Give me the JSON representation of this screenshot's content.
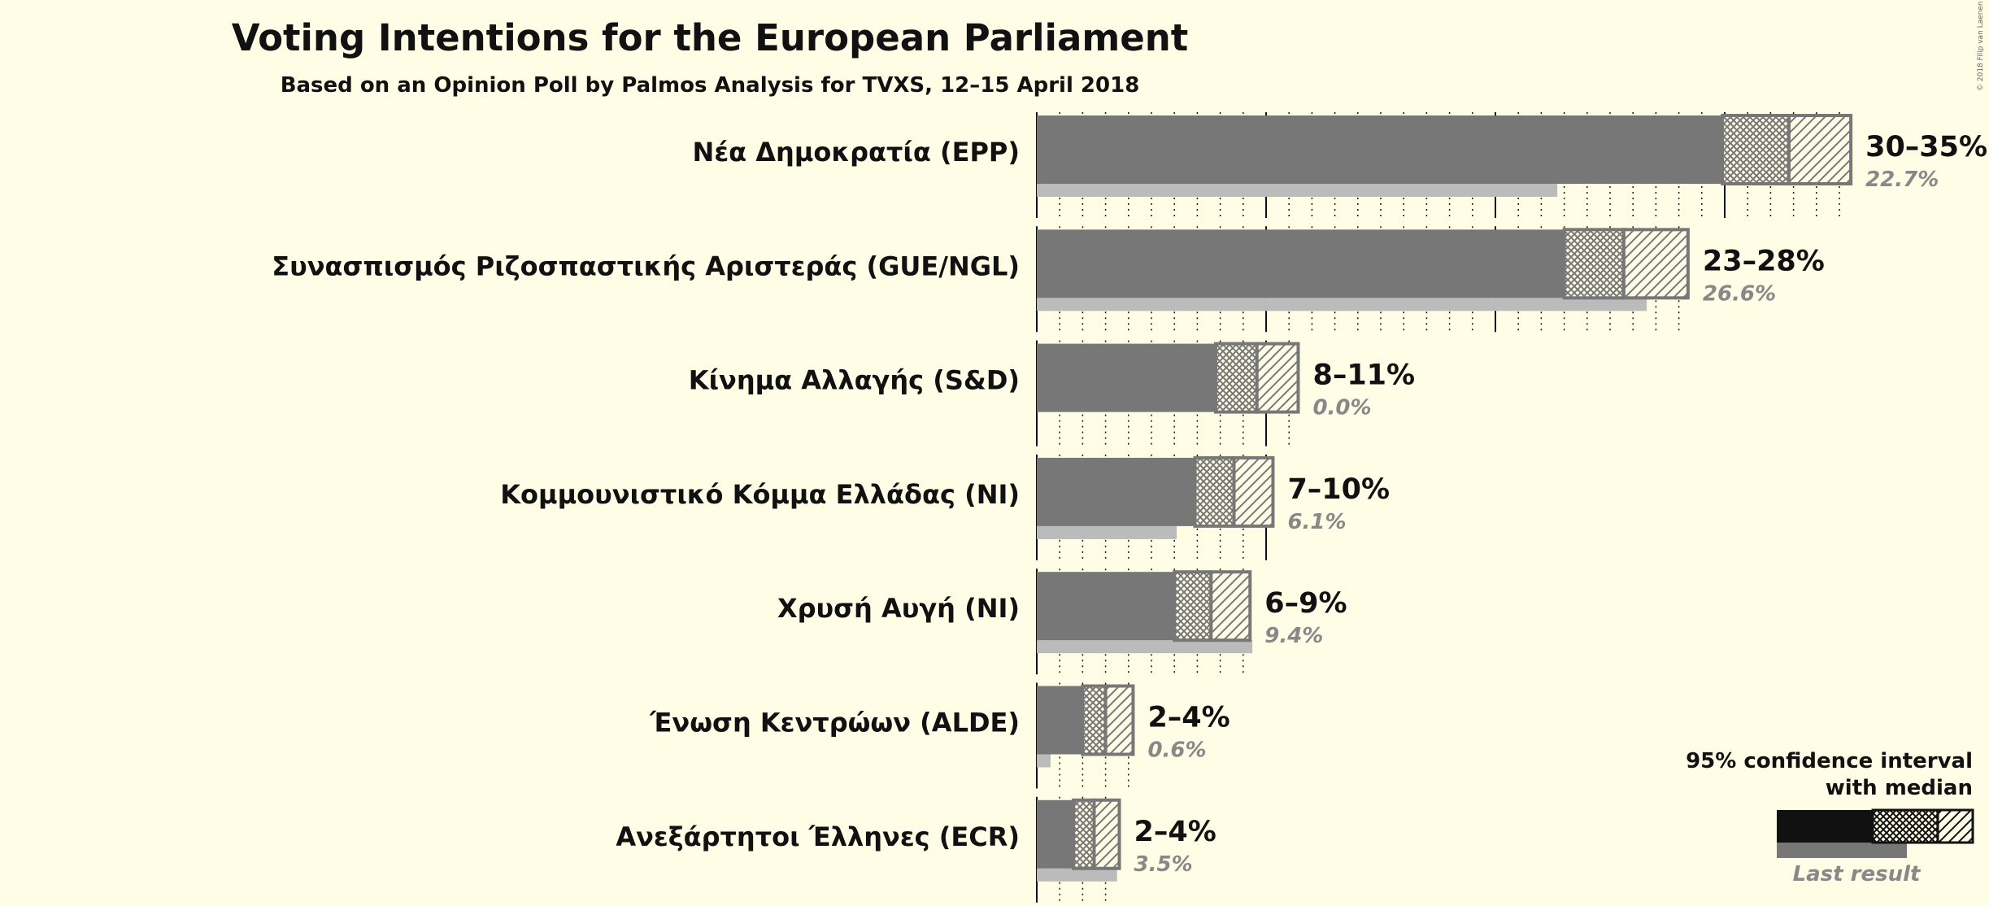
{
  "chart_data": {
    "type": "bar",
    "title": "Voting Intentions for the European Parliament",
    "subtitle": "Based on an Opinion Poll by Palmos Analysis for TVXS, 12–15 April 2018",
    "copyright": "© 2018 Filip van Laenen",
    "x_range": [
      0,
      36
    ],
    "gridlines": {
      "major_every": 10,
      "minor_every": 1
    },
    "categories": [
      "Νέα Δημοκρατία (EPP)",
      "Συνασπισμός Ριζοσπαστικής Αριστεράς (GUE/NGL)",
      "Κίνημα Αλλαγής (S&D)",
      "Κομμουνιστικό Κόμμα Ελλάδας (NI)",
      "Χρυσή Αυγή (NI)",
      "Ένωση Κεντρώων (ALDE)",
      "Ανεξάρτητοι Έλληνες (ECR)"
    ],
    "series": [
      {
        "name": "95% confidence interval with median",
        "parties": [
          {
            "ci80_low": 29.9,
            "median": 32.8,
            "ci95_high": 35.5
          },
          {
            "ci80_low": 23.0,
            "median": 25.6,
            "ci95_high": 28.4
          },
          {
            "ci80_low": 7.8,
            "median": 9.6,
            "ci95_high": 11.4
          },
          {
            "ci80_low": 6.9,
            "median": 8.6,
            "ci95_high": 10.3
          },
          {
            "ci80_low": 6.0,
            "median": 7.6,
            "ci95_high": 9.3
          },
          {
            "ci80_low": 2.0,
            "median": 3.0,
            "ci95_high": 4.2
          },
          {
            "ci80_low": 1.6,
            "median": 2.5,
            "ci95_high": 3.6
          }
        ]
      },
      {
        "name": "Last result",
        "values": [
          22.7,
          26.6,
          0.0,
          6.1,
          9.4,
          0.6,
          3.5
        ]
      }
    ],
    "range_labels": [
      "30–35%",
      "23–28%",
      "8–11%",
      "7–10%",
      "6–9%",
      "2–4%",
      "2–4%"
    ],
    "last_labels": [
      "22.7%",
      "26.6%",
      "0.0%",
      "6.1%",
      "9.4%",
      "0.6%",
      "3.5%"
    ],
    "legend": {
      "line1": "95% confidence interval",
      "line2": "with median",
      "last": "Last result",
      "position": "bottom-right"
    },
    "colors": {
      "background": "#fffde6",
      "bar": "#777777",
      "last_result": "#bbbbbb",
      "legend_dark": "#111111",
      "text": "#111111",
      "muted": "#888888"
    }
  }
}
